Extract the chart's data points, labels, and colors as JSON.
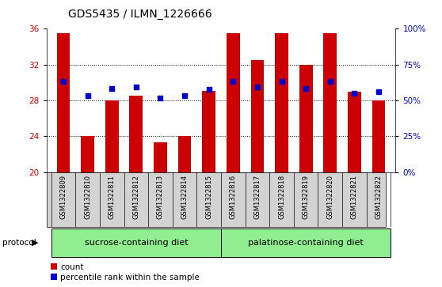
{
  "title": "GDS5435 / ILMN_1226666",
  "samples": [
    "GSM1322809",
    "GSM1322810",
    "GSM1322811",
    "GSM1322812",
    "GSM1322813",
    "GSM1322814",
    "GSM1322815",
    "GSM1322816",
    "GSM1322817",
    "GSM1322818",
    "GSM1322819",
    "GSM1322820",
    "GSM1322821",
    "GSM1322822"
  ],
  "counts": [
    35.5,
    24.0,
    28.0,
    28.5,
    23.3,
    24.0,
    29.1,
    35.5,
    32.5,
    35.5,
    32.0,
    35.5,
    29.0,
    28.0
  ],
  "percentiles_left": [
    30.1,
    28.5,
    29.3,
    29.5,
    28.3,
    28.5,
    29.2,
    30.1,
    29.5,
    30.1,
    29.3,
    30.1,
    28.8,
    29.0
  ],
  "ylim_left": [
    20,
    36
  ],
  "ylim_right": [
    0,
    100
  ],
  "yticks_left": [
    20,
    24,
    28,
    32,
    36
  ],
  "yticks_right": [
    0,
    25,
    50,
    75,
    100
  ],
  "ytick_labels_right": [
    "0%",
    "25%",
    "50%",
    "75%",
    "100%"
  ],
  "bar_color": "#cc0000",
  "dot_color": "#0000cc",
  "bar_width": 0.55,
  "group1_label": "sucrose-containing diet",
  "group2_label": "palatinose-containing diet",
  "group1_indices": [
    0,
    1,
    2,
    3,
    4,
    5,
    6
  ],
  "group2_indices": [
    7,
    8,
    9,
    10,
    11,
    12,
    13
  ],
  "protocol_label": "protocol",
  "legend_count_label": "count",
  "legend_percentile_label": "percentile rank within the sample",
  "group_bg_color": "#90ee90",
  "sample_bg_color": "#d3d3d3",
  "title_fontsize": 10,
  "tick_fontsize": 7.5,
  "label_fontsize": 6,
  "group_fontsize": 8,
  "grid_ticks": [
    24,
    28,
    32
  ]
}
